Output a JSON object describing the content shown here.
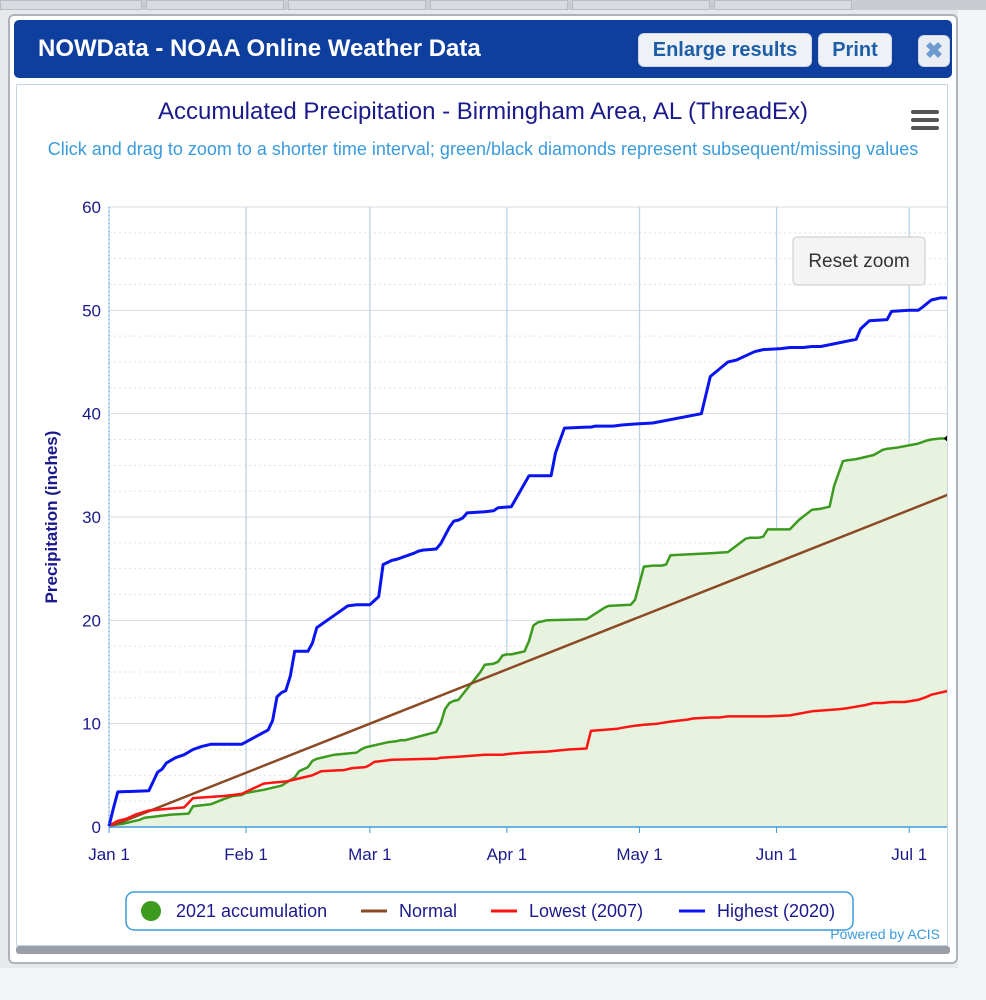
{
  "window": {
    "title": "NOWData - NOAA Online Weather Data",
    "enlarge_label": "Enlarge results",
    "print_label": "Print",
    "close_icon": "close-icon"
  },
  "toolbar": {
    "reset_zoom_label": "Reset zoom",
    "menu_icon": "hamburger-menu-icon"
  },
  "credits": "Powered by ACIS",
  "colors": {
    "titlebar": "#0f3f9e",
    "accumulation": "#3c9a1f",
    "area_fill": "#e7f3df",
    "normal": "#8c4a24",
    "lowest": "#ff1414",
    "highest": "#0a14f0",
    "title_text": "#1a1a8c",
    "subtitle_text": "#3a9bdc"
  },
  "chart_data": {
    "type": "line",
    "title": "Accumulated Precipitation - Birmingham Area, AL (ThreadEx)",
    "subtitle": "Click and drag to zoom to a shorter time interval; green/black diamonds represent subsequent/missing values",
    "ylabel": "Precipitation (inches)",
    "xlabel": "",
    "x_unit": "day of year",
    "xlim": [
      1,
      191
    ],
    "ylim": [
      0,
      60
    ],
    "y_ticks": [
      0,
      10,
      20,
      30,
      40,
      50,
      60
    ],
    "x_ticks": [
      {
        "label": "Jan 1",
        "x": 1
      },
      {
        "label": "Feb 1",
        "x": 32
      },
      {
        "label": "Mar 1",
        "x": 60
      },
      {
        "label": "Apr 1",
        "x": 91
      },
      {
        "label": "May 1",
        "x": 121
      },
      {
        "label": "Jun 1",
        "x": 152
      },
      {
        "label": "Jul 1",
        "x": 182
      }
    ],
    "grid": true,
    "legend_position": "bottom-center",
    "series": [
      {
        "name": "2021 accumulation",
        "color_key": "accumulation",
        "filled": true,
        "marker_last": "diamond",
        "x": [
          1,
          2,
          4,
          6,
          8,
          9,
          11,
          15,
          19,
          20,
          24,
          27,
          29,
          31,
          32,
          36,
          38,
          40,
          43,
          44,
          46,
          47,
          48,
          49,
          51,
          52,
          57,
          58,
          59,
          60,
          62,
          63,
          64,
          66,
          67,
          68,
          75,
          76,
          77,
          78,
          79,
          80,
          85,
          86,
          88,
          89,
          90,
          91,
          92,
          95,
          96,
          97,
          98,
          99,
          100,
          109,
          113,
          114,
          119,
          120,
          122,
          124,
          126,
          127,
          128,
          137,
          141,
          145,
          146,
          148,
          149,
          150,
          155,
          157,
          160,
          162,
          163,
          164,
          165,
          167,
          168,
          170,
          174,
          176,
          177,
          179,
          184,
          186,
          187,
          189,
          191
        ],
        "y": [
          0.1,
          0.2,
          0.3,
          0.5,
          0.7,
          0.9,
          1.0,
          1.2,
          1.3,
          2.0,
          2.2,
          2.7,
          3.0,
          3.1,
          3.3,
          3.6,
          3.8,
          4.0,
          4.8,
          5.4,
          5.8,
          6.4,
          6.6,
          6.7,
          6.9,
          7.0,
          7.2,
          7.5,
          7.7,
          7.8,
          8.0,
          8.1,
          8.2,
          8.3,
          8.4,
          8.4,
          9.2,
          10.0,
          11.4,
          12.0,
          12.2,
          12.3,
          15.0,
          15.7,
          15.8,
          16.0,
          16.6,
          16.7,
          16.7,
          17.0,
          18.0,
          19.5,
          19.8,
          19.9,
          20.0,
          20.1,
          21.2,
          21.4,
          21.5,
          22.0,
          25.2,
          25.3,
          25.3,
          25.4,
          26.3,
          26.5,
          26.6,
          27.9,
          28.0,
          28.0,
          28.1,
          28.8,
          28.8,
          29.7,
          30.7,
          30.8,
          30.9,
          31.0,
          33.0,
          35.4,
          35.5,
          35.6,
          36.0,
          36.5,
          36.6,
          36.7,
          37.1,
          37.4,
          37.5,
          37.6,
          37.6
        ]
      },
      {
        "name": "Normal",
        "color_key": "normal",
        "x": [
          1,
          191
        ],
        "y": [
          0,
          32.2
        ]
      },
      {
        "name": "Lowest (2007)",
        "color_key": "lowest",
        "x": [
          1,
          3,
          5,
          7,
          10,
          18,
          20,
          27,
          29,
          31,
          33,
          36,
          38,
          41,
          43,
          45,
          47,
          49,
          53,
          54,
          56,
          59,
          60,
          61,
          63,
          65,
          74,
          75,
          76,
          80,
          86,
          90,
          92,
          95,
          100,
          105,
          109,
          110,
          116,
          117,
          120,
          122,
          125,
          128,
          132,
          133,
          137,
          139,
          141,
          150,
          155,
          160,
          166,
          168,
          172,
          174,
          176,
          178,
          181,
          184,
          186,
          187,
          189,
          191
        ],
        "y": [
          0.1,
          0.6,
          0.8,
          1.2,
          1.6,
          1.9,
          2.8,
          3.0,
          3.1,
          3.2,
          3.6,
          4.2,
          4.3,
          4.4,
          4.6,
          4.8,
          5.0,
          5.4,
          5.5,
          5.5,
          5.7,
          5.8,
          6.0,
          6.3,
          6.4,
          6.5,
          6.6,
          6.6,
          6.7,
          6.8,
          7.0,
          7.0,
          7.1,
          7.2,
          7.3,
          7.5,
          7.6,
          9.3,
          9.5,
          9.6,
          9.8,
          9.9,
          10.0,
          10.2,
          10.4,
          10.5,
          10.6,
          10.6,
          10.7,
          10.7,
          10.8,
          11.2,
          11.4,
          11.5,
          11.8,
          12.0,
          12.0,
          12.1,
          12.1,
          12.3,
          12.6,
          12.8,
          13.0,
          13.2
        ]
      },
      {
        "name": "Highest (2020)",
        "color_key": "highest",
        "x": [
          1,
          2,
          3,
          10,
          11,
          12,
          13,
          14,
          16,
          18,
          20,
          22,
          24,
          28,
          31,
          37,
          38,
          39,
          40,
          41,
          42,
          43,
          46,
          47,
          48,
          52,
          55,
          57,
          60,
          62,
          63,
          64,
          65,
          66,
          68,
          70,
          71,
          72,
          75,
          76,
          78,
          79,
          80,
          81,
          82,
          86,
          88,
          89,
          92,
          96,
          101,
          102,
          104,
          109,
          110,
          111,
          112,
          115,
          117,
          120,
          124,
          135,
          137,
          141,
          142,
          143,
          145,
          147,
          149,
          153,
          155,
          158,
          160,
          162,
          170,
          171,
          173,
          177,
          178,
          182,
          184,
          185,
          187,
          188,
          189,
          191
        ],
        "y": [
          0.1,
          1.8,
          3.4,
          3.5,
          4.4,
          5.3,
          5.6,
          6.2,
          6.7,
          7.0,
          7.5,
          7.8,
          8.0,
          8.0,
          8.0,
          9.4,
          10.3,
          12.6,
          13.0,
          13.2,
          14.6,
          17.0,
          17.0,
          17.8,
          19.3,
          20.5,
          21.4,
          21.5,
          21.5,
          22.3,
          25.4,
          25.6,
          25.8,
          25.9,
          26.2,
          26.5,
          26.7,
          26.8,
          26.9,
          27.4,
          29.0,
          29.6,
          29.7,
          29.9,
          30.4,
          30.5,
          30.6,
          30.9,
          31.0,
          34.0,
          34.0,
          36.2,
          38.6,
          38.7,
          38.7,
          38.8,
          38.8,
          38.8,
          38.9,
          39.0,
          39.1,
          40.0,
          43.6,
          45.0,
          45.1,
          45.2,
          45.6,
          46.0,
          46.2,
          46.3,
          46.4,
          46.4,
          46.5,
          46.5,
          47.2,
          48.2,
          49.0,
          49.1,
          49.9,
          50.0,
          50.0,
          50.3,
          51.0,
          51.1,
          51.2,
          51.2
        ]
      }
    ]
  }
}
